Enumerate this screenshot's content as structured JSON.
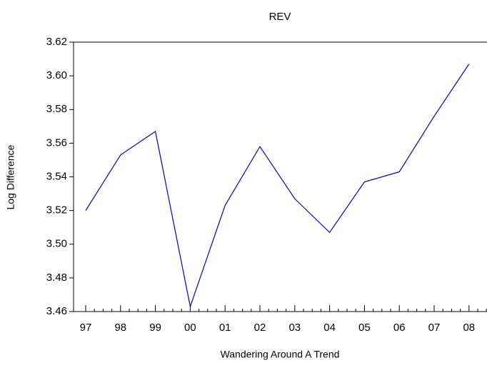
{
  "chart_data": {
    "type": "line",
    "title": "REV",
    "x_label": "Wandering Around A Trend",
    "y_label": "Log Difference",
    "categories": [
      "97",
      "98",
      "99",
      "00",
      "01",
      "02",
      "03",
      "04",
      "05",
      "06",
      "07",
      "08"
    ],
    "values": [
      3.52,
      3.553,
      3.567,
      3.463,
      3.523,
      3.558,
      3.527,
      3.507,
      3.537,
      3.543,
      3.576,
      3.607
    ],
    "color": "#0000cc",
    "ylim": [
      3.46,
      3.62
    ],
    "yticks": [
      3.46,
      3.48,
      {
        "value": 3.5,
        "label": "3.50"
      },
      3.52,
      3.54,
      3.56,
      3.58,
      {
        "value": 3.6,
        "label": "3.60"
      },
      3.62
    ]
  }
}
